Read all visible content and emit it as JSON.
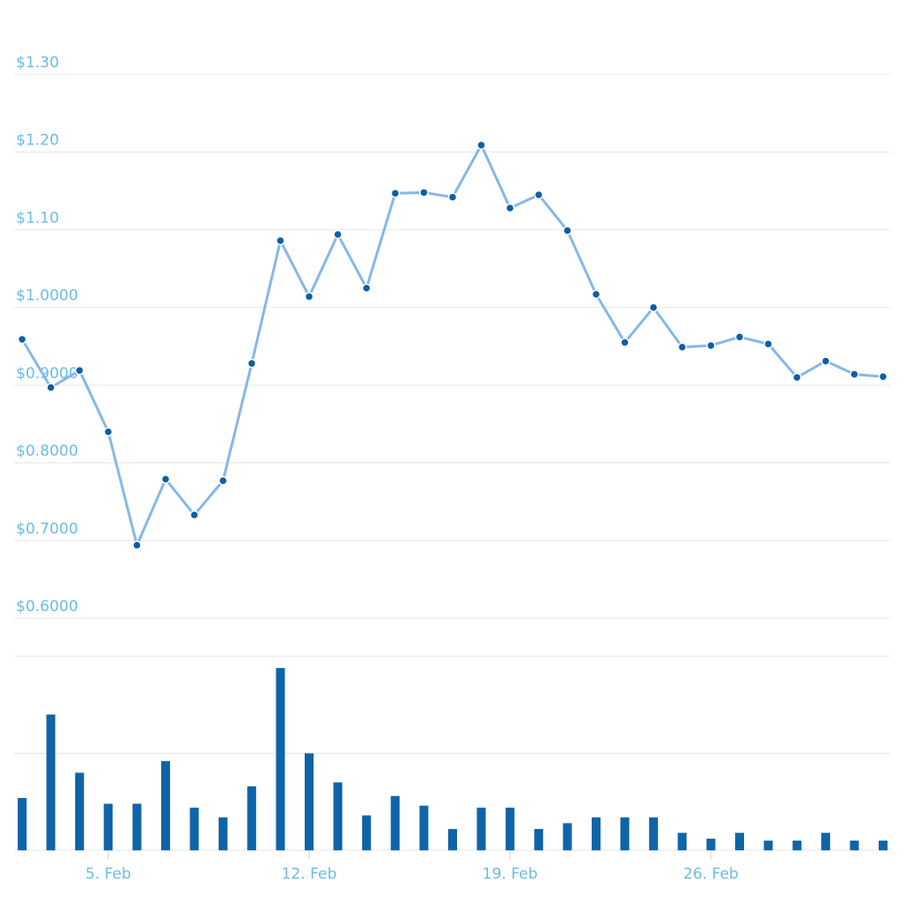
{
  "chart_data": [
    {
      "type": "line",
      "title": "",
      "xlabel": "",
      "ylabel": "",
      "ylim": [
        0.6,
        1.3
      ],
      "y_ticks": [
        1.3,
        1.2,
        1.1,
        1.0,
        0.9,
        0.8,
        0.7,
        0.6
      ],
      "y_tick_labels": [
        "$1.30",
        "$1.20",
        "$1.10",
        "$1.0000",
        "$0.9000",
        "$0.8000",
        "$0.7000",
        "$0.6000"
      ],
      "grid": true,
      "x_ticks": [
        "5. Feb",
        "12. Feb",
        "19. Feb",
        "26. Feb"
      ],
      "x": [
        "Feb 2",
        "Feb 3",
        "Feb 4",
        "Feb 5",
        "Feb 6",
        "Feb 7",
        "Feb 8",
        "Feb 9",
        "Feb 10",
        "Feb 11",
        "Feb 12",
        "Feb 13",
        "Feb 14",
        "Feb 15",
        "Feb 16",
        "Feb 17",
        "Feb 18",
        "Feb 19",
        "Feb 20",
        "Feb 21",
        "Feb 22",
        "Feb 23",
        "Feb 24",
        "Feb 25",
        "Feb 26",
        "Feb 27",
        "Feb 28",
        "Mar 1",
        "Mar 2",
        "Mar 3",
        "Mar 4"
      ],
      "values": [
        0.959,
        0.897,
        0.919,
        0.84,
        0.694,
        0.779,
        0.733,
        0.777,
        0.928,
        1.086,
        1.014,
        1.094,
        1.025,
        1.147,
        1.148,
        1.142,
        1.209,
        1.128,
        1.145,
        1.099,
        1.017,
        0.955,
        1.0,
        0.949,
        0.951,
        0.962,
        0.953,
        0.91,
        0.931,
        0.914,
        0.911
      ],
      "colors": {
        "line": "#85b8e8",
        "marker": "#0f5ea8"
      }
    },
    {
      "type": "bar",
      "title": "",
      "xlabel": "",
      "ylabel": "",
      "ylim": [
        0,
        100
      ],
      "grid": true,
      "x": [
        "Feb 2",
        "Feb 3",
        "Feb 4",
        "Feb 5",
        "Feb 6",
        "Feb 7",
        "Feb 8",
        "Feb 9",
        "Feb 10",
        "Feb 11",
        "Feb 12",
        "Feb 13",
        "Feb 14",
        "Feb 15",
        "Feb 16",
        "Feb 17",
        "Feb 18",
        "Feb 19",
        "Feb 20",
        "Feb 21",
        "Feb 22",
        "Feb 23",
        "Feb 24",
        "Feb 25",
        "Feb 26",
        "Feb 27",
        "Feb 28",
        "Mar 1",
        "Mar 2",
        "Mar 3",
        "Mar 4"
      ],
      "values": [
        27,
        70,
        40,
        24,
        24,
        46,
        22,
        17,
        33,
        94,
        50,
        35,
        18,
        28,
        23,
        11,
        22,
        22,
        11,
        14,
        17,
        17,
        17,
        9,
        6,
        9,
        5,
        5,
        9,
        5,
        5
      ],
      "colors": {
        "bar": "#0f64a8"
      }
    }
  ]
}
